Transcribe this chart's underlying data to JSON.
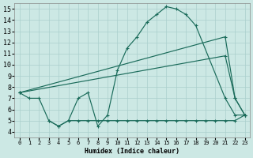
{
  "xlabel": "Humidex (Indice chaleur)",
  "bg_color": "#cce8e4",
  "grid_color": "#aacfcc",
  "line_color": "#1a6b5a",
  "xlim": [
    -0.5,
    23.5
  ],
  "ylim": [
    3.5,
    15.5
  ],
  "xticks": [
    0,
    1,
    2,
    3,
    4,
    5,
    6,
    7,
    8,
    9,
    10,
    11,
    12,
    13,
    14,
    15,
    16,
    17,
    18,
    19,
    20,
    21,
    22,
    23
  ],
  "yticks": [
    4,
    5,
    6,
    7,
    8,
    9,
    10,
    11,
    12,
    13,
    14,
    15
  ],
  "curve1_x": [
    0,
    1,
    2,
    3,
    4,
    5,
    6,
    7,
    8,
    9,
    10,
    11,
    12,
    13,
    14,
    15,
    16,
    17,
    18,
    21,
    22,
    23
  ],
  "curve1_y": [
    7.5,
    7.0,
    7.0,
    5.0,
    4.5,
    5.0,
    7.0,
    7.5,
    4.5,
    5.5,
    9.5,
    11.5,
    12.5,
    13.8,
    14.5,
    15.2,
    15.0,
    14.5,
    13.5,
    7.0,
    5.5,
    5.5
  ],
  "curve2_x": [
    0,
    21,
    22,
    23
  ],
  "curve2_y": [
    7.5,
    12.5,
    7.0,
    5.5
  ],
  "curve3_x": [
    0,
    21,
    22,
    23
  ],
  "curve3_y": [
    7.5,
    10.8,
    7.0,
    5.5
  ],
  "curve4_x": [
    3,
    4,
    5,
    6,
    7,
    8,
    9,
    10,
    11,
    12,
    13,
    14,
    15,
    16,
    17,
    18,
    19,
    20,
    21,
    22,
    23
  ],
  "curve4_y": [
    5.0,
    4.5,
    5.0,
    5.0,
    5.0,
    5.0,
    5.0,
    5.0,
    5.0,
    5.0,
    5.0,
    5.0,
    5.0,
    5.0,
    5.0,
    5.0,
    5.0,
    5.0,
    5.0,
    5.0,
    5.5
  ]
}
